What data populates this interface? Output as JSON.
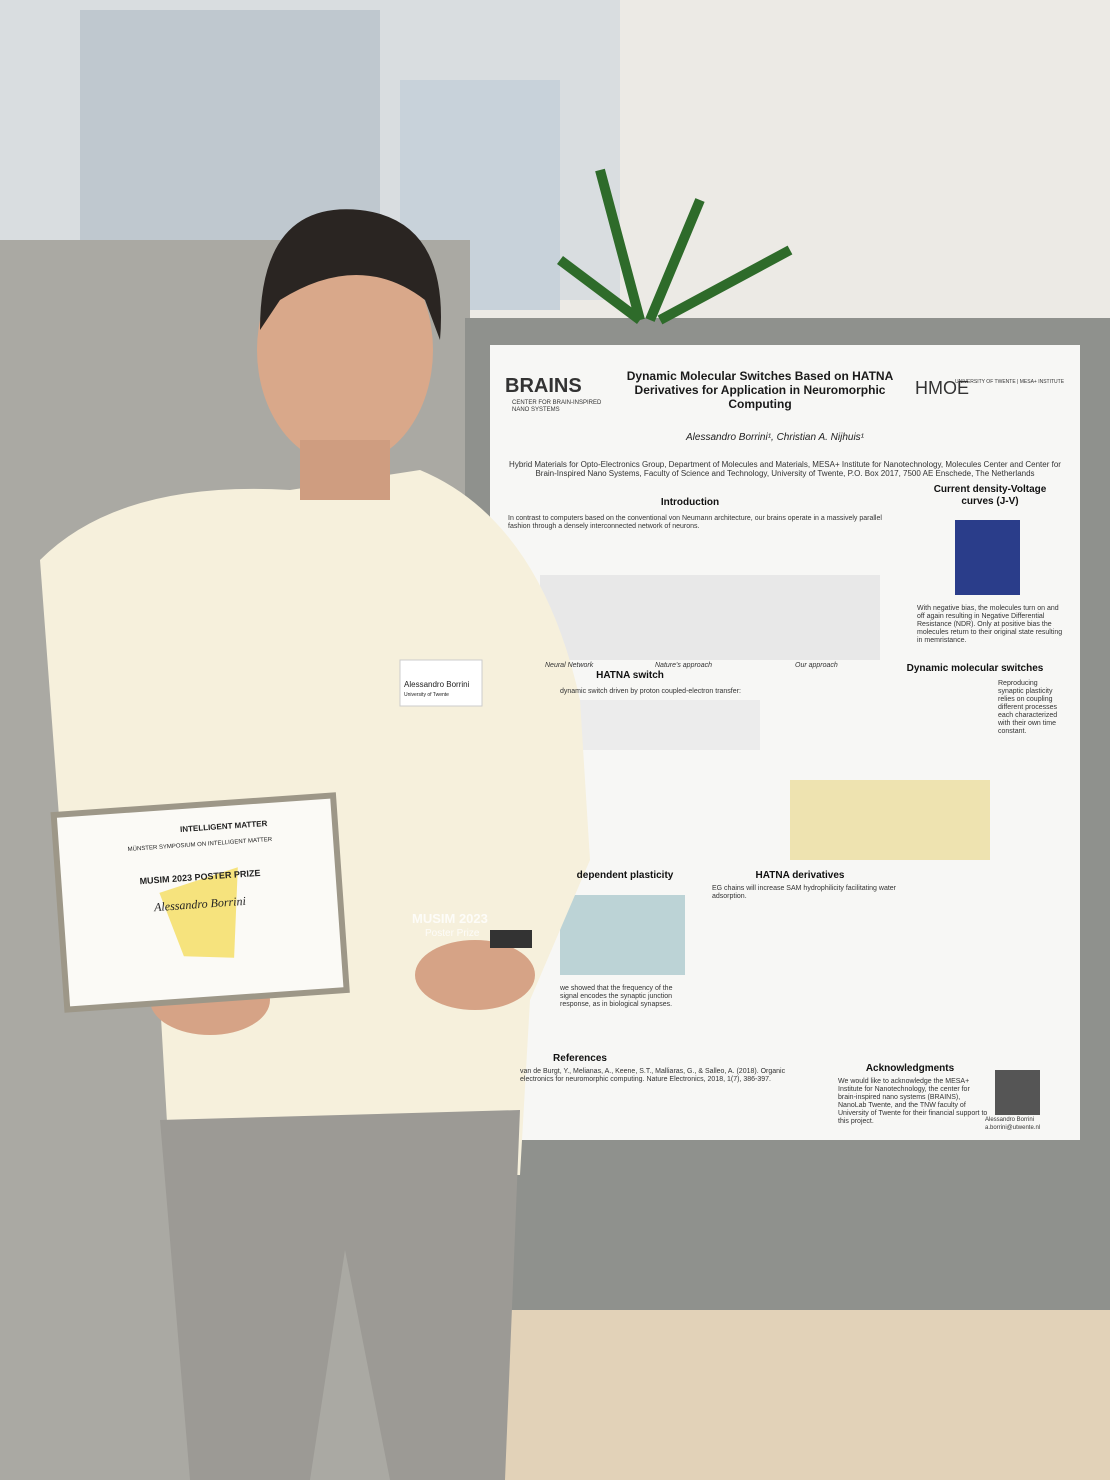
{
  "poster": {
    "logos": {
      "left": "BRAINS",
      "left_sub": "CENTER FOR BRAIN-INSPIRED NANO SYSTEMS",
      "right": "HMOE",
      "right_sub": "UNIVERSITY OF TWENTE | MESA+ INSTITUTE"
    },
    "title": "Dynamic Molecular Switches Based on HATNA Derivatives for Application in Neuromorphic Computing",
    "authors": "Alessandro Borrini¹, Christian A. Nijhuis¹",
    "affiliation": "Hybrid Materials for Opto-Electronics Group, Department of Molecules and Materials, MESA+ Institute for Nanotechnology, Molecules Center and Center for Brain-Inspired Nano Systems, Faculty of Science and Technology, University of Twente, P.O. Box 2017, 7500 AE Enschede, The Netherlands",
    "sections": [
      {
        "heading": "Introduction",
        "text": "In contrast to computers based on the conventional von Neumann architecture, our brains operate in a massively parallel fashion through a densely interconnected network of neurons."
      },
      {
        "heading": "Current density-Voltage curves (J-V)",
        "text": "With negative bias, the molecules turn on and off again resulting in Negative Differential Resistance (NDR). Only at positive bias the molecules return to their original state resulting in memristance."
      },
      {
        "heading": "HATNA switch",
        "text": "dynamic switch driven by proton coupled-electron transfer:"
      },
      {
        "heading": "Dynamic molecular switches",
        "text": "Reproducing synaptic plasticity relies on coupling different processes each characterized with their own time constant."
      },
      {
        "heading": "dependent plasticity",
        "text": "we showed that the frequency of the signal encodes the synaptic junction response, as in biological synapses."
      },
      {
        "heading": "HATNA derivatives",
        "text": "EG chains will increase SAM hydrophilicity facilitating water adsorption."
      },
      {
        "heading": "References",
        "text": "van de Burgt, Y., Melianas, A., Keene, S.T., Malliaras, G., & Salleo, A. (2018). Organic electronics for neuromorphic computing. Nature Electronics, 2018, 1(7), 386-397."
      },
      {
        "heading": "Acknowledgments",
        "text": "We would like to acknowledge the MESA+ Institute for Nanotechnology, the center for brain-inspired nano systems (BRAINS), NanoLab Twente, and the TNW faculty of University of Twente for their financial support to this project."
      }
    ],
    "figure_labels": [
      "Neural Network",
      "Nature's approach",
      "Our approach"
    ],
    "contact": {
      "name": "Alessandro Borrini",
      "email": "a.borrini@utwente.nl"
    }
  },
  "certificate": {
    "brand": "INTELLIGENT MATTER",
    "event": "MÜNSTER SYMPOSIUM ON INTELLIGENT MATTER",
    "prize": "MUSIM 2023 POSTER PRIZE",
    "winner": "Alessandro Borrini"
  },
  "badge": {
    "name": "Alessandro Borrini",
    "affiliation": "University of Twente"
  },
  "shirt_print": {
    "line1": "MUSIM 2023",
    "line2": "Poster Prize"
  }
}
